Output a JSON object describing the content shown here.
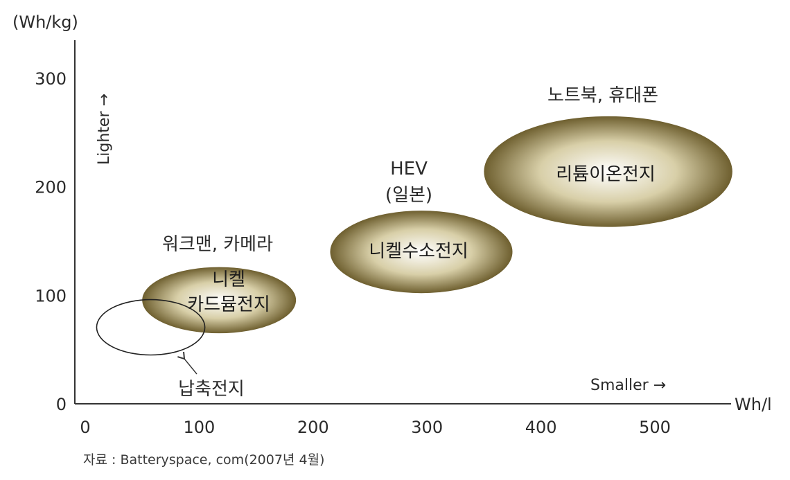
{
  "chart_data": {
    "type": "bubble",
    "y_unit": "(Wh/kg)",
    "x_unit": "Wh/l",
    "y_axis_note": "Lighter →",
    "x_axis_note": "Smaller →",
    "xlim": [
      0,
      560
    ],
    "ylim": [
      0,
      335
    ],
    "x_ticks": [
      "0",
      "100",
      "200",
      "300",
      "400",
      "500"
    ],
    "y_ticks": [
      "0",
      "100",
      "200",
      "300"
    ],
    "grid": false,
    "regions": [
      {
        "name": "납축전지",
        "caption": "",
        "x_range": [
          10,
          105
        ],
        "y_range": [
          45,
          96
        ],
        "filled": false,
        "annotation": "납축전지"
      },
      {
        "name": "니켈 카드뮴전지",
        "caption": "워크맨, 카메라",
        "label_lines": [
          "니켈",
          "카드뮴전지"
        ],
        "x_range": [
          50,
          185
        ],
        "y_range": [
          65,
          126
        ],
        "filled": true
      },
      {
        "name": "니켈수소전지",
        "caption_lines": [
          "HEV",
          "(일본)"
        ],
        "x_range": [
          215,
          375
        ],
        "y_range": [
          102,
          178
        ],
        "filled": true
      },
      {
        "name": "리튬이온전지",
        "caption": "노트북, 휴대폰",
        "x_range": [
          350,
          568
        ],
        "y_range": [
          163,
          265
        ],
        "filled": true
      }
    ],
    "colors": {
      "fill_center": "#ffffff",
      "fill_mid": "#d8cfa8",
      "fill_edge": "#6e5f2f",
      "axis": "#333333"
    }
  },
  "source": "자료 : Batteryspace, com(2007년 4월)"
}
